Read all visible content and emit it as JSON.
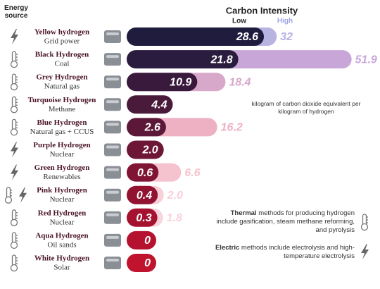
{
  "chart_data": {
    "type": "bar",
    "title": "Carbon Intensity",
    "row_header": "Energy source",
    "unit_note": "kilogram of carbon dioxide equivalent per kilogram of hydrogen",
    "notes": [
      {
        "bold": "Thermal",
        "text": " methods for producing hydrogen include gasification, steam methane reforming, and pyrolysis",
        "method": "thermal"
      },
      {
        "bold": "Electric",
        "text": " methods include electrolysis and high-temperature electrolysis",
        "method": "electric"
      }
    ],
    "categories": [
      "Yellow hydrogen",
      "Black Hydrogen",
      "Grey Hydrogen",
      "Turquoise Hydrogen",
      "Blue Hydrogen",
      "Purple Hydrogen",
      "Green Hydrogen",
      "Pink Hydrogen",
      "Red Hydrogen",
      "Aqua Hydrogen",
      "White Hydrogen"
    ],
    "sources": [
      "Grid power",
      "Coal",
      "Natural gas",
      "Methane",
      "Natural gas + CCUS",
      "Nuclear",
      "Renewables",
      "Nuclear",
      "Nuclear",
      "Oil sands",
      "Solar"
    ],
    "methods": [
      [
        "electric"
      ],
      [
        "thermal"
      ],
      [
        "thermal"
      ],
      [
        "thermal"
      ],
      [
        "thermal"
      ],
      [
        "electric"
      ],
      [
        "electric"
      ],
      [
        "thermal",
        "electric"
      ],
      [
        "thermal"
      ],
      [
        "thermal"
      ],
      [
        "thermal"
      ]
    ],
    "series": [
      {
        "name": "Low",
        "color": "#2a2147",
        "colors": [
          "#1f1c3e",
          "#2a1c3e",
          "#3a1a3c",
          "#4a1a3a",
          "#5c1838",
          "#6e1636",
          "#801434",
          "#921232",
          "#a41230",
          "#b4122e",
          "#c0142e"
        ],
        "values": [
          28.6,
          21.8,
          10.9,
          4.4,
          2.6,
          2.0,
          0.6,
          0.4,
          0.3,
          0,
          0
        ],
        "value_labels": [
          "28.6",
          "21.8",
          "10.9",
          "4.4",
          "2.6",
          "2.0",
          "0.6",
          "0.4",
          "0.3",
          "0",
          "0"
        ]
      },
      {
        "name": "High",
        "color": "#9ea3e0",
        "colors": [
          "#b7b4e2",
          "#c9a6d8",
          "#d8a8ca",
          null,
          "#eeb1c3",
          null,
          "#f4c3ce",
          "#f7d0d8",
          "#f8d4dc",
          null,
          null
        ],
        "values": [
          32,
          51.9,
          18.4,
          null,
          16.2,
          null,
          6.6,
          2.0,
          1.8,
          null,
          null
        ],
        "value_labels": [
          "32",
          "51.9",
          "18.4",
          null,
          "16.2",
          null,
          "6.6",
          "2.0",
          "1.8",
          null,
          null
        ]
      }
    ]
  }
}
